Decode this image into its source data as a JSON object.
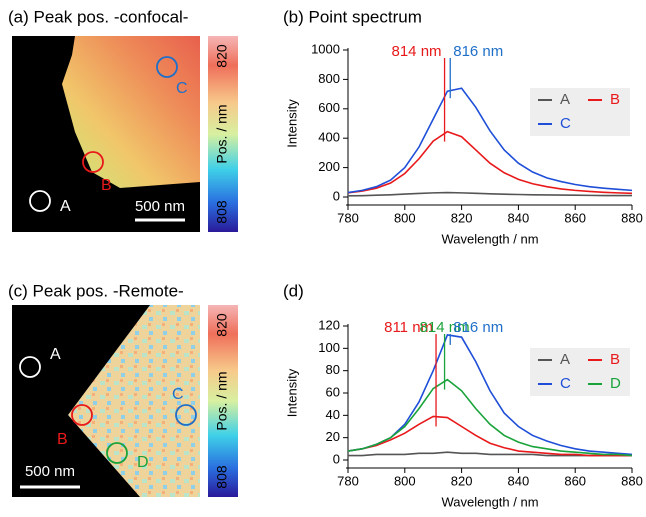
{
  "maps": [
    {
      "title": "(a) Peak pos. -confocal-",
      "colorbar_label": "Pos. / nm",
      "colorbar_ticks": [
        820,
        808
      ],
      "scale_bar": "500 nm",
      "points": [
        {
          "label": "A",
          "color": "#ffffff"
        },
        {
          "label": "B",
          "color": "#e8191b"
        },
        {
          "label": "C",
          "color": "#1f6fc9"
        }
      ]
    },
    {
      "title": "(c) Peak pos. -Remote-",
      "colorbar_label": "Pos. / nm",
      "colorbar_ticks": [
        820,
        808
      ],
      "scale_bar": "500 nm",
      "points": [
        {
          "label": "A",
          "color": "#ffffff"
        },
        {
          "label": "B",
          "color": "#e8191b"
        },
        {
          "label": "C",
          "color": "#1f6fc9"
        },
        {
          "label": "D",
          "color": "#1aa33a"
        }
      ]
    }
  ],
  "chart_data": [
    {
      "type": "line",
      "title": "(b) Point spectrum",
      "xlabel": "Wavelength / nm",
      "ylabel": "Intensity",
      "xlim": [
        780,
        880
      ],
      "xticks": [
        780,
        800,
        820,
        840,
        860,
        880
      ],
      "ylim": [
        0,
        1000
      ],
      "yticks": [
        0,
        200,
        400,
        600,
        800,
        1000
      ],
      "x": [
        780,
        785,
        790,
        795,
        800,
        805,
        810,
        815,
        820,
        825,
        830,
        835,
        840,
        845,
        850,
        855,
        860,
        865,
        870,
        875,
        880
      ],
      "series": [
        {
          "name": "A",
          "color": "#555555",
          "values": [
            8,
            9,
            12,
            15,
            20,
            24,
            28,
            30,
            28,
            25,
            22,
            19,
            17,
            15,
            14,
            13,
            12,
            11,
            10,
            10,
            10
          ]
        },
        {
          "name": "B",
          "color": "#e8191b",
          "values": [
            28,
            40,
            60,
            95,
            160,
            260,
            380,
            445,
            410,
            320,
            230,
            165,
            120,
            90,
            70,
            55,
            45,
            38,
            32,
            28,
            25
          ]
        },
        {
          "name": "C",
          "color": "#1f4fd8",
          "values": [
            30,
            45,
            70,
            115,
            200,
            340,
            530,
            720,
            740,
            610,
            450,
            320,
            230,
            170,
            130,
            105,
            85,
            70,
            60,
            52,
            45
          ]
        }
      ],
      "annotations": [
        {
          "text": "814 nm",
          "x": 814,
          "color": "#e8191b"
        },
        {
          "text": "816 nm",
          "x": 816,
          "color": "#1f6fc9"
        }
      ]
    },
    {
      "type": "line",
      "title": "(d)",
      "xlabel": "Wavelength / nm",
      "ylabel": "Intensity",
      "xlim": [
        780,
        880
      ],
      "xticks": [
        780,
        800,
        820,
        840,
        860,
        880
      ],
      "ylim": [
        0,
        120
      ],
      "yticks": [
        0,
        20,
        40,
        60,
        80,
        100,
        120
      ],
      "x": [
        780,
        785,
        790,
        795,
        800,
        805,
        810,
        815,
        820,
        825,
        830,
        835,
        840,
        845,
        850,
        855,
        860,
        865,
        870,
        875,
        880
      ],
      "series": [
        {
          "name": "A",
          "color": "#555555",
          "values": [
            4,
            4,
            5,
            5,
            5,
            6,
            6,
            7,
            6,
            6,
            5,
            5,
            5,
            5,
            4,
            4,
            4,
            4,
            4,
            4,
            4
          ]
        },
        {
          "name": "B",
          "color": "#e8191b",
          "values": [
            8,
            10,
            13,
            18,
            24,
            32,
            39,
            38,
            30,
            22,
            15,
            11,
            8,
            7,
            6,
            5,
            5,
            4,
            4,
            4,
            4
          ]
        },
        {
          "name": "C",
          "color": "#1f4fd8",
          "values": [
            8,
            10,
            14,
            20,
            32,
            52,
            80,
            112,
            110,
            88,
            62,
            42,
            30,
            22,
            17,
            13,
            10,
            8,
            7,
            6,
            5
          ]
        },
        {
          "name": "D",
          "color": "#1aa33a",
          "values": [
            8,
            10,
            14,
            20,
            30,
            46,
            64,
            72,
            62,
            46,
            32,
            22,
            16,
            12,
            10,
            8,
            7,
            6,
            5,
            5,
            4
          ]
        }
      ],
      "annotations": [
        {
          "text": "811 nm",
          "x": 811,
          "color": "#e8191b"
        },
        {
          "text": "814 nm",
          "x": 814,
          "color": "#1aa33a"
        },
        {
          "text": "816 nm",
          "x": 816,
          "color": "#1f6fc9"
        }
      ]
    }
  ]
}
